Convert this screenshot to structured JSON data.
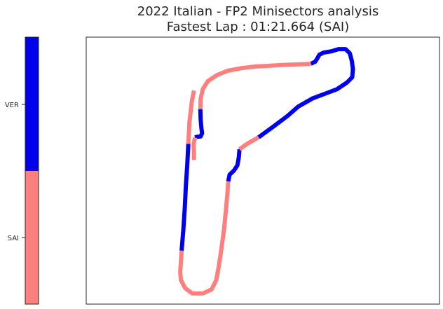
{
  "chart_data": {
    "type": "track-map",
    "title_line1": "2022 Italian - FP2 Minisectors analysis",
    "title_line2": "Fastest Lap : 01:21.664 (SAI)",
    "legend": {
      "categories": [
        "SAI",
        "VER"
      ],
      "colors": {
        "SAI": "#ff7f7f",
        "VER": "#0000ee"
      }
    },
    "track": {
      "xlim": [
        0,
        100
      ],
      "ylim": [
        0,
        100
      ],
      "segments": [
        {
          "driver": "SAI",
          "points": [
            [
              30.5,
              20
            ],
            [
              29.9,
              24
            ],
            [
              29.2,
              32
            ],
            [
              28.9,
              40
            ]
          ]
        },
        {
          "driver": "VER",
          "points": [
            [
              28.9,
              40
            ],
            [
              28.6,
              48
            ],
            [
              28.2,
              56
            ],
            [
              27.9,
              64
            ],
            [
              27.5,
              72
            ],
            [
              27.0,
              80
            ]
          ]
        },
        {
          "driver": "SAI",
          "points": [
            [
              27.0,
              80
            ],
            [
              26.8,
              84
            ],
            [
              26.6,
              88
            ],
            [
              26.8,
              91
            ],
            [
              28.0,
              94
            ],
            [
              30.0,
              96
            ],
            [
              33.0,
              96
            ],
            [
              35.5,
              94.5
            ],
            [
              36.8,
              91
            ],
            [
              37.5,
              86
            ],
            [
              38.2,
              80
            ],
            [
              39.0,
              72
            ],
            [
              39.6,
              64
            ],
            [
              40.0,
              58
            ],
            [
              40.2,
              54
            ]
          ]
        },
        {
          "driver": "VER",
          "points": [
            [
              40.2,
              54
            ],
            [
              40.6,
              51.5
            ],
            [
              41.8,
              50
            ],
            [
              42.8,
              48
            ],
            [
              43.2,
              45
            ],
            [
              43.4,
              42
            ]
          ]
        },
        {
          "driver": "SAI",
          "points": [
            [
              43.4,
              42
            ],
            [
              45.5,
              40
            ],
            [
              48.8,
              37.5
            ]
          ]
        },
        {
          "driver": "VER",
          "points": [
            [
              48.8,
              37.5
            ],
            [
              53,
              33.5
            ],
            [
              57,
              29.5
            ],
            [
              60,
              26
            ],
            [
              64,
              23
            ],
            [
              68,
              21
            ],
            [
              71,
              19.5
            ],
            [
              73.8,
              17
            ],
            [
              75.3,
              15
            ],
            [
              75.5,
              12
            ],
            [
              75.2,
              9
            ],
            [
              74.6,
              6
            ],
            [
              73.4,
              4.5
            ],
            [
              71.4,
              4.5
            ],
            [
              69.4,
              5.3
            ],
            [
              67.2,
              5.8
            ],
            [
              66.0,
              6.6
            ],
            [
              65.4,
              8
            ],
            [
              64.8,
              9.2
            ],
            [
              63.6,
              10
            ]
          ]
        },
        {
          "driver": "SAI",
          "points": [
            [
              63.6,
              10
            ],
            [
              60,
              10.2
            ],
            [
              56,
              10.4
            ],
            [
              52,
              10.7
            ],
            [
              48,
              11.0
            ],
            [
              44,
              11.6
            ],
            [
              40,
              12.6
            ],
            [
              37,
              14.2
            ],
            [
              34.4,
              16.5
            ],
            [
              33.0,
              19.5
            ],
            [
              32.4,
              23
            ],
            [
              32.3,
              27
            ]
          ]
        },
        {
          "driver": "VER",
          "points": [
            [
              32.3,
              27
            ],
            [
              32.4,
              31
            ],
            [
              32.6,
              34
            ],
            [
              32.8,
              36
            ],
            [
              32.4,
              37.2
            ],
            [
              31.4,
              37.3
            ],
            [
              30.8,
              37.6
            ]
          ]
        },
        {
          "driver": "SAI",
          "points": [
            [
              30.8,
              37.6
            ],
            [
              30.4,
              40
            ],
            [
              30.5,
              43
            ],
            [
              30.5,
              46
            ]
          ]
        }
      ]
    }
  }
}
